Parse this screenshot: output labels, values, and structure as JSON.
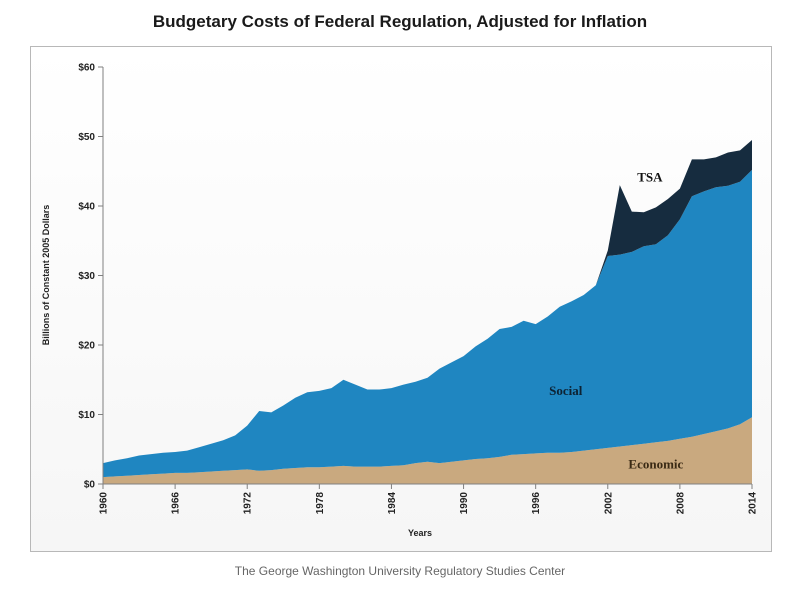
{
  "title": "Budgetary Costs of Federal Regulation, Adjusted for Inflation",
  "source": "The George Washington University Regulatory Studies Center",
  "colors": {
    "economic": "#c9a97f",
    "social": "#1f86c1",
    "tsa": "#162c3f",
    "background": "#ffffff"
  },
  "chart_data": {
    "type": "area",
    "stacked": true,
    "title": "Budgetary Costs of Federal Regulation, Adjusted for Inflation",
    "xlabel": "Years",
    "ylabel": "Billions of Constant 2005 Dollars",
    "xlim": [
      1960,
      2014
    ],
    "ylim": [
      0,
      60
    ],
    "grid": false,
    "y_ticks": [
      0,
      10,
      20,
      30,
      40,
      50,
      60
    ],
    "y_tick_labels": [
      "$0",
      "$10",
      "$20",
      "$30",
      "$40",
      "$50",
      "$60"
    ],
    "x_ticks": [
      1960,
      1966,
      1972,
      1978,
      1984,
      1990,
      1996,
      2002,
      2008,
      2014
    ],
    "x_tick_labels": [
      "1960",
      "1966",
      "1972",
      "1978",
      "1984",
      "1990",
      "1996",
      "2002",
      "2008",
      "2014"
    ],
    "x": [
      1960,
      1961,
      1962,
      1963,
      1964,
      1965,
      1966,
      1967,
      1968,
      1969,
      1970,
      1971,
      1972,
      1973,
      1974,
      1975,
      1976,
      1977,
      1978,
      1979,
      1980,
      1981,
      1982,
      1983,
      1984,
      1985,
      1986,
      1987,
      1988,
      1989,
      1990,
      1991,
      1992,
      1993,
      1994,
      1995,
      1996,
      1997,
      1998,
      1999,
      2000,
      2001,
      2002,
      2003,
      2004,
      2005,
      2006,
      2007,
      2008,
      2009,
      2010,
      2011,
      2012,
      2013,
      2014
    ],
    "series": [
      {
        "name": "Economic",
        "values": [
          1.0,
          1.1,
          1.2,
          1.3,
          1.4,
          1.5,
          1.6,
          1.6,
          1.7,
          1.8,
          1.9,
          2.0,
          2.1,
          1.9,
          2.0,
          2.2,
          2.3,
          2.4,
          2.4,
          2.5,
          2.6,
          2.5,
          2.5,
          2.5,
          2.6,
          2.7,
          3.0,
          3.2,
          3.0,
          3.2,
          3.4,
          3.6,
          3.7,
          3.9,
          4.2,
          4.3,
          4.4,
          4.5,
          4.5,
          4.6,
          4.8,
          5.0,
          5.2,
          5.4,
          5.6,
          5.8,
          6.0,
          6.2,
          6.5,
          6.8,
          7.2,
          7.6,
          8.0,
          8.6,
          9.6
        ]
      },
      {
        "name": "Social",
        "values": [
          2.0,
          2.3,
          2.5,
          2.8,
          2.9,
          3.0,
          3.0,
          3.2,
          3.6,
          4.0,
          4.4,
          5.0,
          6.3,
          8.6,
          8.3,
          9.1,
          10.1,
          10.8,
          11.0,
          11.3,
          12.4,
          11.8,
          11.1,
          11.1,
          11.2,
          11.6,
          11.7,
          12.1,
          13.6,
          14.3,
          15.0,
          16.2,
          17.2,
          18.4,
          18.4,
          19.2,
          18.6,
          19.6,
          21.0,
          21.7,
          22.4,
          23.6,
          27.6,
          27.6,
          27.8,
          28.4,
          28.5,
          29.6,
          31.6,
          34.6,
          34.9,
          35.1,
          34.9,
          34.9,
          35.6
        ]
      },
      {
        "name": "TSA",
        "values": [
          0,
          0,
          0,
          0,
          0,
          0,
          0,
          0,
          0,
          0,
          0,
          0,
          0,
          0,
          0,
          0,
          0,
          0,
          0,
          0,
          0,
          0,
          0,
          0,
          0,
          0,
          0,
          0,
          0,
          0,
          0,
          0,
          0,
          0,
          0,
          0,
          0,
          0,
          0,
          0,
          0,
          0,
          0.8,
          10.0,
          5.8,
          4.9,
          5.3,
          5.2,
          4.4,
          5.3,
          4.6,
          4.3,
          4.8,
          4.5,
          4.3
        ]
      }
    ],
    "annotations": [
      {
        "text": "TSA",
        "x": 2005.5,
        "y": 43.5,
        "color": "#111111"
      },
      {
        "text": "Social",
        "x": 1998.5,
        "y": 12.8,
        "color": "#0d2233"
      },
      {
        "text": "Economic",
        "x": 2006,
        "y": 2.2,
        "color": "#3a2a14"
      }
    ]
  }
}
